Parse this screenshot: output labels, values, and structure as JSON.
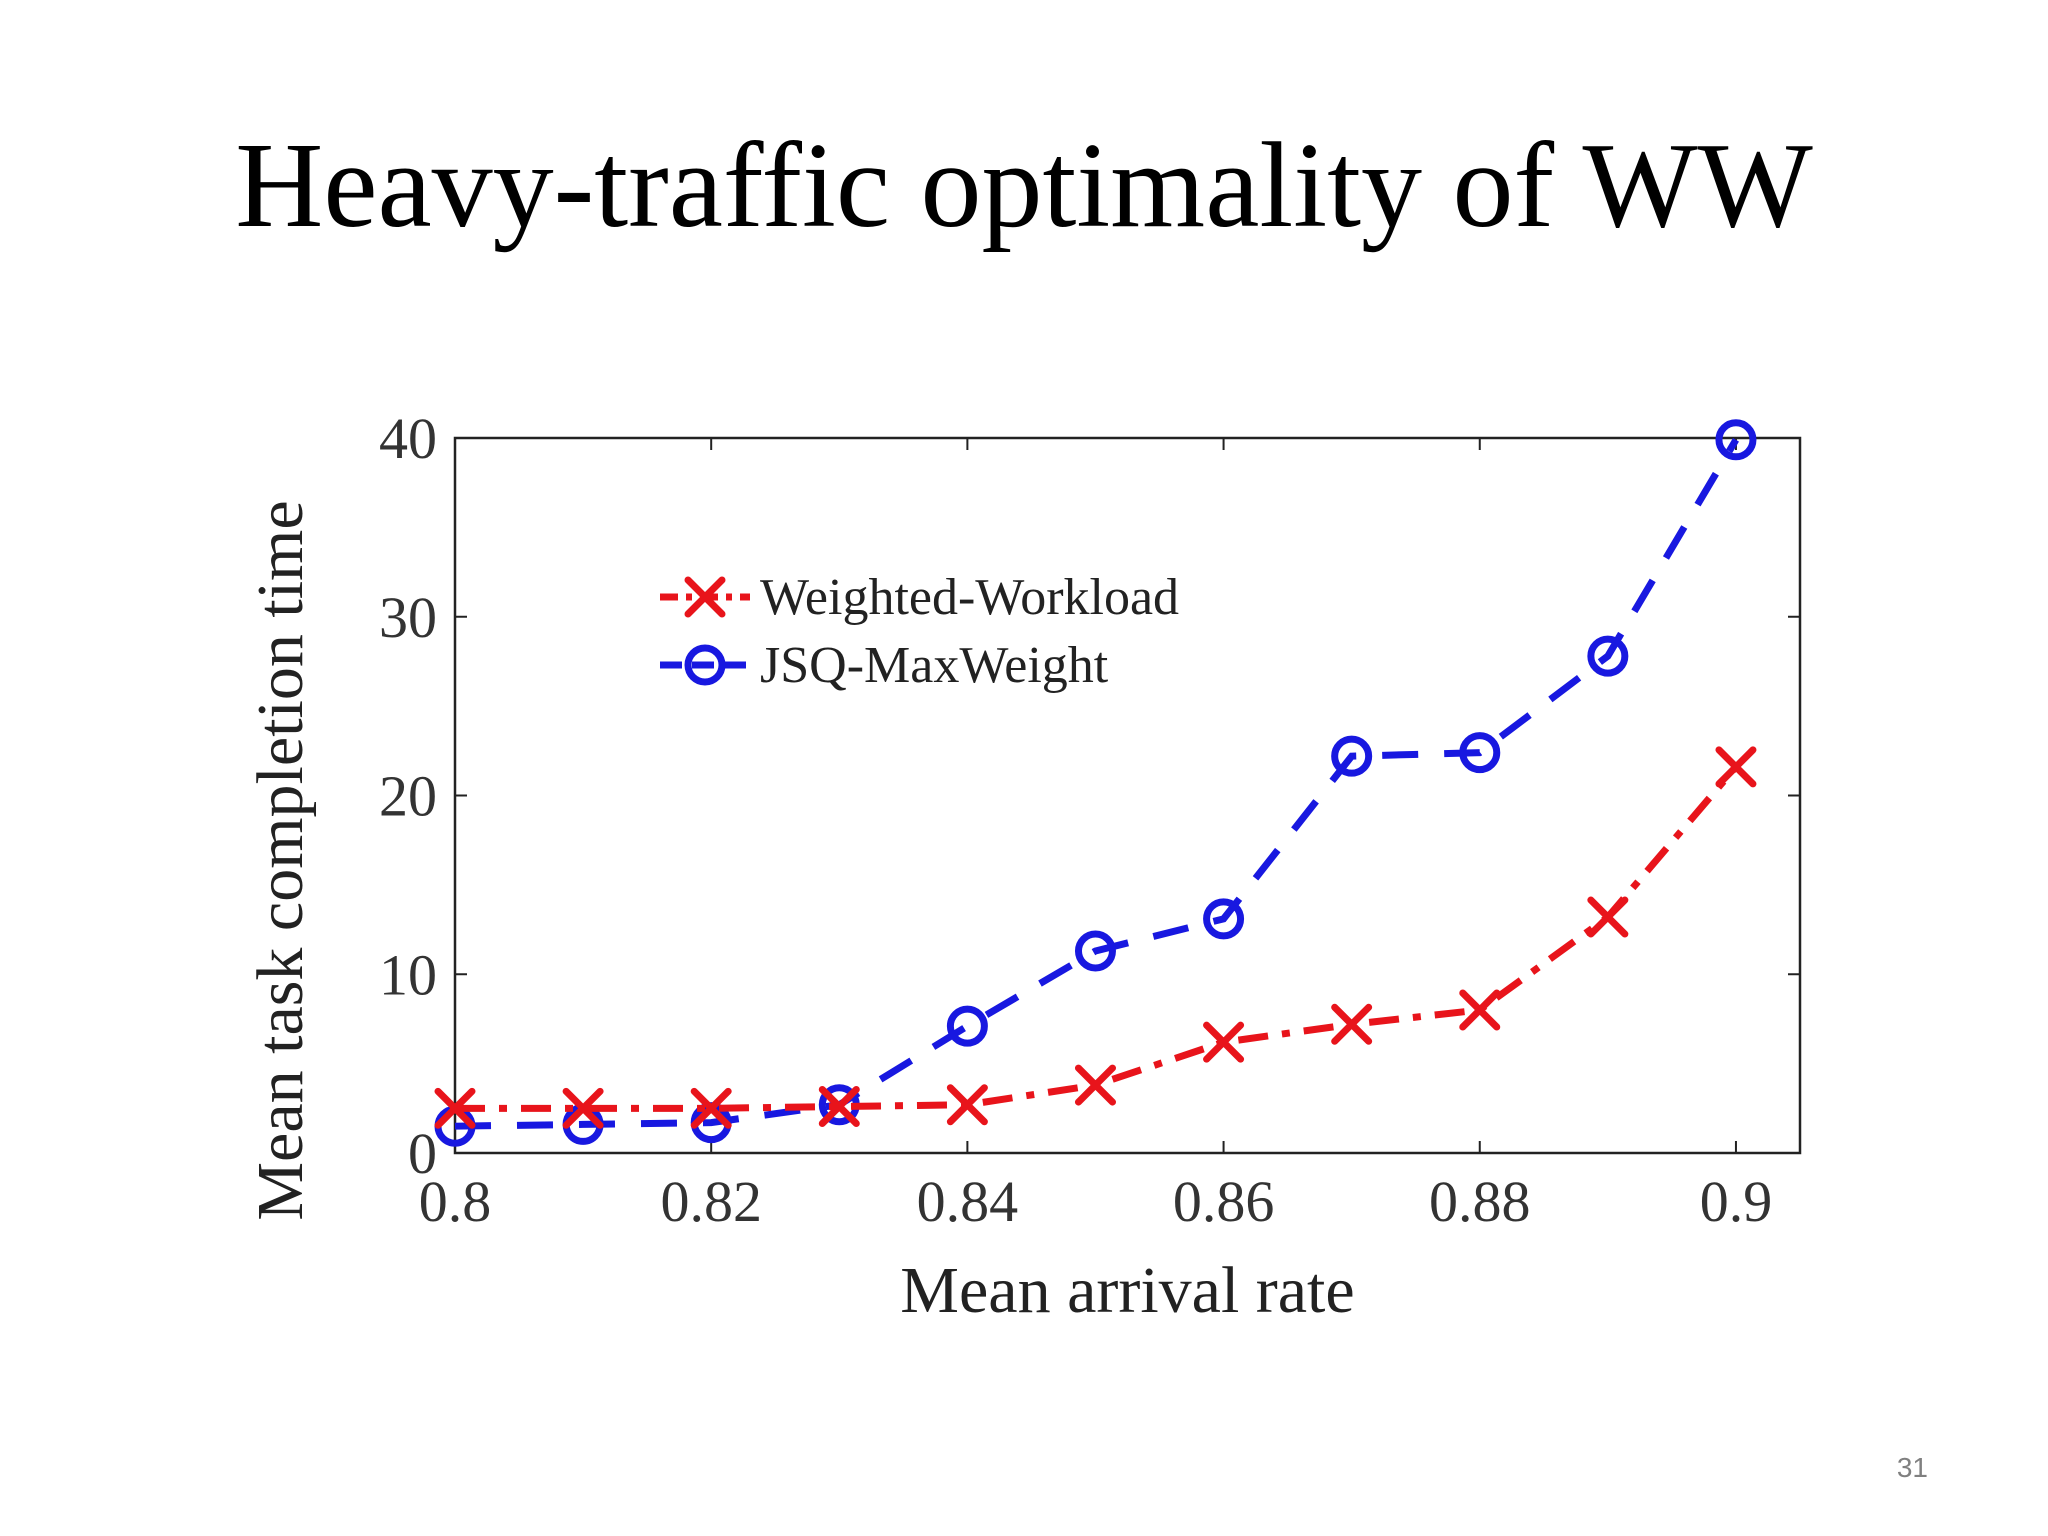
{
  "slide": {
    "title": "Heavy-traffic optimality of WW",
    "page_number": "31"
  },
  "chart_data": {
    "type": "line",
    "title": "",
    "xlabel": "Mean arrival rate",
    "ylabel": "Mean task completion time",
    "xlim": [
      0.8,
      0.905
    ],
    "ylim": [
      0,
      40
    ],
    "x_ticks": [
      0.8,
      0.82,
      0.84,
      0.86,
      0.88,
      0.9
    ],
    "x_tick_labels": [
      "0.8",
      "0.82",
      "0.84",
      "0.86",
      "0.88",
      "0.9"
    ],
    "y_ticks": [
      0,
      10,
      20,
      30,
      40
    ],
    "y_tick_labels": [
      "0",
      "10",
      "20",
      "30",
      "40"
    ],
    "grid": false,
    "legend_position": "top-left",
    "x": [
      0.8,
      0.81,
      0.82,
      0.83,
      0.84,
      0.85,
      0.86,
      0.87,
      0.88,
      0.89,
      0.9
    ],
    "series": [
      {
        "name": "Weighted-Workload",
        "color": "#e8141b",
        "marker": "x",
        "line_style": "dash-dot",
        "values": [
          2.5,
          2.5,
          2.5,
          2.6,
          2.7,
          3.8,
          6.2,
          7.2,
          8.0,
          13.2,
          21.6
        ]
      },
      {
        "name": "JSQ-MaxWeight",
        "color": "#1818e0",
        "marker": "circle",
        "line_style": "dashed",
        "values": [
          1.5,
          1.6,
          1.7,
          2.7,
          7.1,
          11.3,
          13.1,
          22.2,
          22.4,
          27.8,
          39.9
        ]
      }
    ]
  }
}
